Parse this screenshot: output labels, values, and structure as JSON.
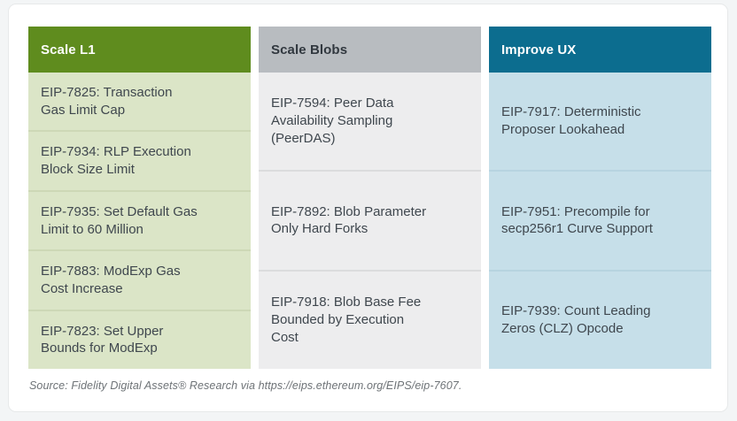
{
  "figure": {
    "type": "table",
    "columns": [
      {
        "title": "Scale L1",
        "header_bg": "#5f8c1e",
        "cell_bg": "#dbe5c7",
        "items": [
          "EIP-7825: Transaction Gas Limit Cap",
          "EIP-7934: RLP Execution Block Size Limit",
          "EIP-7935: Set Default Gas Limit to 60 Million",
          "EIP-7883: ModExp Gas Cost Increase",
          "EIP-7823: Set Upper Bounds for ModExp"
        ]
      },
      {
        "title": "Scale Blobs",
        "header_bg": "#b8bcc0",
        "cell_bg": "#ededee",
        "items": [
          "EIP-7594: Peer Data Availability Sampling (PeerDAS)",
          "EIP-7892: Blob Parameter Only Hard Forks",
          "EIP-7918: Blob Base Fee Bounded by Execution Cost"
        ]
      },
      {
        "title": "Improve UX",
        "header_bg": "#0c6d8f",
        "cell_bg": "#c6dfe9",
        "items": [
          "EIP-7917: Deterministic Proposer Lookahead",
          "EIP-7951: Precompile for secp256r1 Curve Support",
          "EIP-7939: Count Leading Zeros (CLZ) Opcode"
        ]
      }
    ],
    "source_note": "Source: Fidelity Digital Assets® Research via https://eips.ethereum.org/EIPS/eip-7607."
  }
}
